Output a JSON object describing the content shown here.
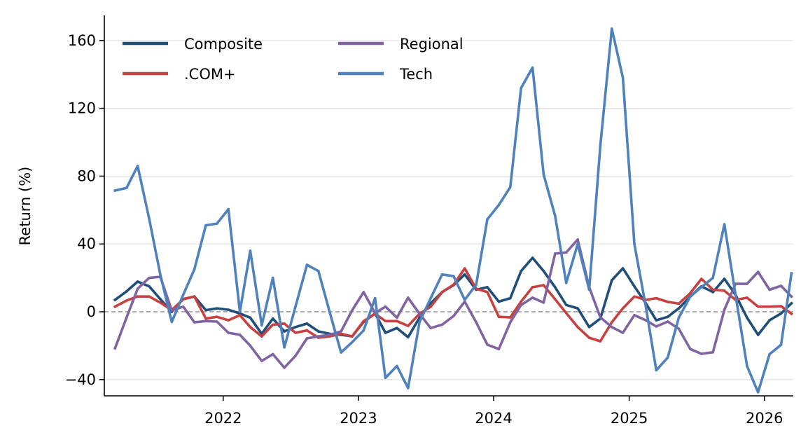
{
  "chart_data": {
    "type": "line",
    "title": "",
    "xlabel": "",
    "ylabel": "Return (%)",
    "ylim": [
      -49.6,
      174.8
    ],
    "xlim": [
      "2021-02-14",
      "2026-03-20"
    ],
    "yticks": [
      -40,
      0,
      40,
      80,
      120,
      160
    ],
    "ytick_labels": [
      "−40",
      "0",
      "40",
      "80",
      "120",
      "160"
    ],
    "xticks": [
      "2022-01",
      "2023-01",
      "2024-01",
      "2025-01",
      "2026-01"
    ],
    "xtick_labels": [
      "2022",
      "2023",
      "2024",
      "2025",
      "2026"
    ],
    "grid": "horizontal",
    "reference_line": {
      "y": 0,
      "style": "dashed",
      "color": "#999999"
    },
    "legend": {
      "placement": "top-left",
      "columns": 2
    },
    "x": [
      "2021-03",
      "2021-04",
      "2021-05",
      "2021-06",
      "2021-07",
      "2021-08",
      "2021-09",
      "2021-10",
      "2021-11",
      "2021-12",
      "2022-01",
      "2022-02",
      "2022-03",
      "2022-04",
      "2022-05",
      "2022-06",
      "2022-07",
      "2022-08",
      "2022-09",
      "2022-10",
      "2022-11",
      "2022-12",
      "2023-01",
      "2023-02",
      "2023-03",
      "2023-04",
      "2023-05",
      "2023-06",
      "2023-07",
      "2023-08",
      "2023-09",
      "2023-10",
      "2023-11",
      "2023-12",
      "2024-01",
      "2024-02",
      "2024-03",
      "2024-04",
      "2024-05",
      "2024-06",
      "2024-07",
      "2024-08",
      "2024-09",
      "2024-10",
      "2024-11",
      "2024-12",
      "2025-01",
      "2025-02",
      "2025-03",
      "2025-04",
      "2025-05",
      "2025-06",
      "2025-07",
      "2025-08",
      "2025-09",
      "2025-10",
      "2025-11",
      "2025-12",
      "2026-01",
      "2026-02",
      "2026-03"
    ],
    "series": [
      {
        "name": "Composite",
        "color": "#1f4e79",
        "values": [
          7,
          12,
          17.8,
          15,
          7.5,
          0,
          7.5,
          9,
          1,
          2,
          1.2,
          -1,
          -3.5,
          -13,
          -4,
          -11.6,
          -9,
          -7,
          -11.6,
          -13,
          -13.6,
          -14.5,
          -6,
          -1,
          -12.4,
          -9.6,
          -15,
          -3.5,
          5,
          11.6,
          15.7,
          22,
          13,
          14.5,
          6,
          8,
          24,
          31.8,
          24,
          14.5,
          4,
          2,
          -9,
          -4,
          18.6,
          25.6,
          15,
          5,
          -5,
          -3,
          2,
          9,
          15,
          11.6,
          19.4,
          10,
          -3.5,
          -13.6,
          -5,
          -1,
          5
        ]
      },
      {
        "name": ".COM+",
        "color": "#c8403f",
        "values": [
          3,
          6.6,
          9,
          9,
          5.4,
          1,
          7.4,
          9,
          -4,
          -3,
          -5,
          -2,
          -9,
          -14.5,
          -7.6,
          -7,
          -12.4,
          -11,
          -15.3,
          -14.5,
          -13,
          -14.5,
          -5.5,
          -1.2,
          -5.5,
          -5.5,
          -8.3,
          -1.2,
          3,
          11.6,
          16,
          25.6,
          13.6,
          11.6,
          -3,
          -3.3,
          6,
          14.5,
          15.7,
          7.4,
          -0.8,
          -9,
          -15.3,
          -17.4,
          -6.2,
          2,
          9,
          7,
          8,
          5.8,
          4.8,
          11,
          19.4,
          13,
          12.4,
          7,
          8.3,
          3,
          3,
          3.3,
          -1.2
        ]
      },
      {
        "name": "Regional",
        "color": "#8064a2",
        "values": [
          -21.5,
          -3.5,
          13.6,
          20,
          20.6,
          0.8,
          3,
          -6.2,
          -5.5,
          -5.8,
          -12.4,
          -13.6,
          -20,
          -29,
          -25,
          -33,
          -26,
          -15.7,
          -14.5,
          -13.6,
          -11.6,
          0.8,
          11.6,
          -0.8,
          3,
          -3.5,
          8.3,
          -1.2,
          -9.6,
          -7.6,
          -2.5,
          6,
          -6.2,
          -19.4,
          -22,
          -6.2,
          4,
          8.3,
          5.4,
          34.3,
          35,
          42.6,
          14.5,
          -3.3,
          -9,
          -12.4,
          -2,
          -5,
          -8.7,
          -5.8,
          -10,
          -22,
          -24.8,
          -23.9,
          1.2,
          16.5,
          16.5,
          23.5,
          13,
          15.3,
          9
        ]
      },
      {
        "name": "Tech",
        "color": "#4f81bd",
        "values": [
          71.5,
          73,
          86,
          55,
          22,
          -6,
          10,
          25,
          51,
          52,
          60.5,
          0,
          36,
          -8,
          20,
          -21,
          3,
          27.7,
          24,
          0,
          -24,
          -18,
          -11,
          8,
          -39,
          -32,
          -45,
          -6,
          8,
          22,
          21,
          7,
          16,
          54.5,
          63,
          73.5,
          132,
          144,
          81,
          56.6,
          17,
          40,
          13,
          98,
          167,
          138,
          40,
          3,
          -34.5,
          -27,
          -3.5,
          9,
          14.5,
          20,
          51.6,
          10,
          -32,
          -47.5,
          -25,
          -19.5,
          22.7
        ]
      }
    ]
  }
}
